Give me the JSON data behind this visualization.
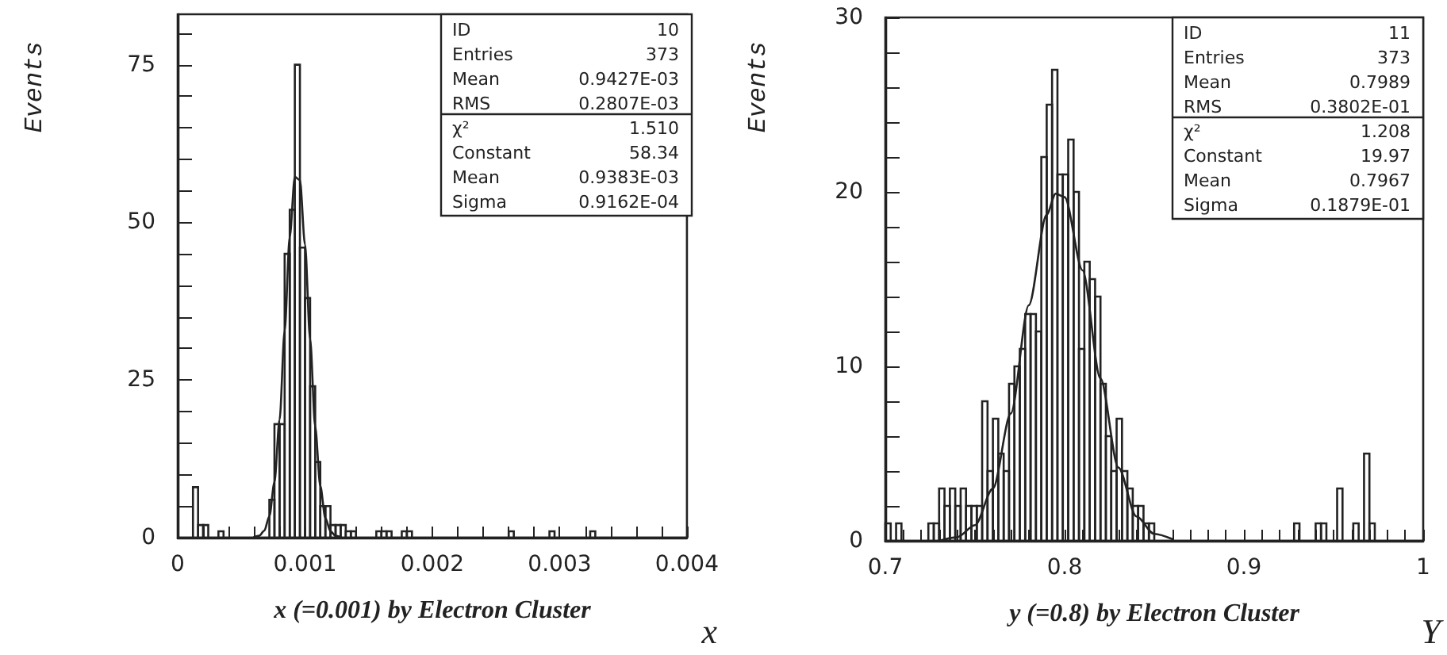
{
  "chart_data": [
    {
      "type": "histogram",
      "xlabel": "x (=0.001) by Electron Cluster",
      "ylabel": "Events",
      "color": "#222222",
      "bins": [
        0,
        4e-05,
        8e-05,
        0.00012,
        0.00016,
        0.0002,
        0.00024,
        0.00028,
        0.00032,
        0.00036,
        0.0004,
        0.00044,
        0.00048,
        0.00052,
        0.00056,
        0.0006,
        0.00064,
        0.00068,
        0.00072,
        0.00076,
        0.0008,
        0.00084,
        0.00088,
        0.00092,
        0.00096,
        0.001,
        0.00104,
        0.00108,
        0.00112,
        0.00116,
        0.0012,
        0.00124,
        0.00128,
        0.00132,
        0.00136,
        0.0014,
        0.00144,
        0.00148,
        0.00152,
        0.00156,
        0.0016,
        0.00164,
        0.00168,
        0.00172,
        0.00176,
        0.0018,
        0.00184,
        0.00188,
        0.00192,
        0.00196,
        0.002,
        0.00204,
        0.00208,
        0.00212,
        0.00216,
        0.0022,
        0.00224,
        0.00228,
        0.00232,
        0.00236,
        0.0024,
        0.00244,
        0.00248,
        0.00252,
        0.00256,
        0.0026,
        0.00264,
        0.00268,
        0.00272,
        0.00276,
        0.0028,
        0.00284,
        0.00288,
        0.00292,
        0.00296,
        0.003,
        0.00304,
        0.00308,
        0.00312,
        0.00316,
        0.0032,
        0.00324,
        0.00328,
        0.00332,
        0.00336,
        0.0034,
        0.00344,
        0.00348,
        0.00352,
        0.00356,
        0.0036,
        0.00364,
        0.00368,
        0.00372,
        0.00376,
        0.0038,
        0.00384,
        0.00388,
        0.00392,
        0.00396,
        0.004
      ],
      "values": [
        0,
        0,
        0,
        8,
        2,
        2,
        0,
        0,
        1,
        0,
        0,
        0,
        0,
        0,
        0,
        0,
        0,
        0,
        6,
        18,
        18,
        45,
        52,
        75,
        46,
        38,
        24,
        12,
        5,
        5,
        2,
        2,
        2,
        1,
        1,
        0,
        0,
        0,
        0,
        1,
        1,
        1,
        0,
        0,
        1,
        1,
        0,
        0,
        0,
        0,
        0,
        0,
        0,
        0,
        0,
        0,
        0,
        0,
        0,
        0,
        0,
        0,
        0,
        0,
        0,
        1,
        0,
        0,
        0,
        0,
        0,
        0,
        0,
        1,
        0,
        0,
        0,
        0,
        0,
        0,
        0,
        1,
        0,
        0,
        0,
        0,
        0,
        0,
        0,
        0,
        0,
        0,
        0,
        0,
        0,
        0,
        0,
        0,
        0,
        0
      ],
      "series": [
        {
          "type": "line",
          "color": "#222222",
          "x": [
            0.0006,
            0.00064,
            0.00068,
            0.00072,
            0.00076,
            0.0008,
            0.00084,
            0.00088,
            0.00092,
            0.00096,
            0.001,
            0.00104,
            0.00108,
            0.00112,
            0.00116,
            0.0012,
            0.00124,
            0.00128
          ],
          "values": [
            0.1,
            0.3,
            1.1,
            3.4,
            8.8,
            18.7,
            32.8,
            47.7,
            57.2,
            56.7,
            46.5,
            31.5,
            17.6,
            8.2,
            3.1,
            1,
            0.3,
            0.1
          ]
        }
      ],
      "xlim": [
        0,
        0.004
      ],
      "xticks": [
        0,
        {
          "value": 0.0002,
          "label": null
        },
        {
          "value": 0.0004,
          "label": null
        },
        {
          "value": 0.0006,
          "label": null
        },
        {
          "value": 0.0008,
          "label": null
        },
        0.001,
        {
          "value": 0.0012,
          "label": null
        },
        {
          "value": 0.0014,
          "label": null
        },
        {
          "value": 0.0016,
          "label": null
        },
        {
          "value": 0.0018,
          "label": null
        },
        0.002,
        {
          "value": 0.0022,
          "label": null
        },
        {
          "value": 0.0024,
          "label": null
        },
        {
          "value": 0.0026,
          "label": null
        },
        {
          "value": 0.0028,
          "label": null
        },
        0.003,
        {
          "value": 0.0032,
          "label": null
        },
        {
          "value": 0.0034,
          "label": null
        },
        {
          "value": 0.0036,
          "label": null
        },
        {
          "value": 0.0038,
          "label": null
        },
        0.004
      ],
      "ylim": [
        0,
        83
      ],
      "yticks": [
        0,
        {
          "value": 5,
          "label": null
        },
        {
          "value": 10,
          "label": null
        },
        {
          "value": 15,
          "label": null
        },
        {
          "value": 20,
          "label": null
        },
        25,
        {
          "value": 30,
          "label": null
        },
        {
          "value": 35,
          "label": null
        },
        {
          "value": 40,
          "label": null
        },
        {
          "value": 45,
          "label": null
        },
        50,
        {
          "value": 55,
          "label": null
        },
        {
          "value": 60,
          "label": null
        },
        {
          "value": 65,
          "label": null
        },
        {
          "value": 70,
          "label": null
        },
        75,
        {
          "value": 80,
          "label": null
        }
      ],
      "annotations": [
        "x",
        "ID",
        "10",
        "Entries",
        "373",
        "Mean",
        "0.9427E-03",
        "RMS",
        "0.2807E-03",
        "χ²",
        "1.510",
        "Constant",
        "58.34",
        "Mean",
        "0.9383E-03",
        "Sigma",
        "0.9162E-04"
      ]
    },
    {
      "type": "histogram",
      "xlabel": "y (=0.8) by Electron Cluster",
      "ylabel": "Events",
      "color": "#222222",
      "bins": [
        0.7,
        0.703,
        0.706,
        0.709,
        0.712,
        0.715,
        0.718,
        0.721,
        0.724,
        0.727,
        0.73,
        0.733,
        0.736,
        0.739,
        0.742,
        0.745,
        0.748,
        0.751,
        0.754,
        0.757,
        0.76,
        0.763,
        0.766,
        0.769,
        0.772,
        0.775,
        0.778,
        0.781,
        0.784,
        0.787,
        0.79,
        0.793,
        0.796,
        0.799,
        0.802,
        0.805,
        0.808,
        0.811,
        0.814,
        0.817,
        0.82,
        0.823,
        0.826,
        0.829,
        0.832,
        0.835,
        0.838,
        0.841,
        0.844,
        0.847,
        0.85,
        0.853,
        0.856,
        0.859,
        0.862,
        0.865,
        0.868,
        0.871,
        0.874,
        0.877,
        0.88,
        0.883,
        0.886,
        0.889,
        0.892,
        0.895,
        0.898,
        0.901,
        0.904,
        0.907,
        0.91,
        0.913,
        0.916,
        0.919,
        0.922,
        0.925,
        0.928,
        0.931,
        0.934,
        0.937,
        0.94,
        0.943,
        0.946,
        0.949,
        0.952,
        0.955,
        0.958,
        0.961,
        0.964,
        0.967,
        0.97,
        0.973,
        0.976,
        0.979,
        0.982,
        0.985,
        0.988,
        0.991,
        0.994,
        0.997,
        1
      ],
      "values": [
        1,
        0,
        1,
        0,
        0,
        0,
        0,
        0,
        1,
        1,
        3,
        2,
        3,
        2,
        3,
        2,
        2,
        2,
        8,
        4,
        7,
        5,
        4,
        9,
        10,
        11,
        13,
        13,
        12,
        22,
        25,
        27,
        21,
        21,
        23,
        20,
        11,
        16,
        15,
        14,
        9,
        6,
        4,
        7,
        4,
        3,
        2,
        2,
        1,
        1,
        0,
        0,
        0,
        0,
        0,
        0,
        0,
        0,
        0,
        0,
        0,
        0,
        0,
        0,
        0,
        0,
        0,
        0,
        0,
        0,
        0,
        0,
        0,
        0,
        0,
        0,
        1,
        0,
        0,
        0,
        1,
        1,
        0,
        0,
        3,
        0,
        0,
        1,
        0,
        5,
        1,
        0,
        0,
        0,
        0,
        0,
        0,
        0,
        0,
        0
      ],
      "series": [
        {
          "type": "line",
          "color": "#222222",
          "x": [
            0.73,
            0.74,
            0.75,
            0.76,
            0.77,
            0.78,
            0.79,
            0.795,
            0.8,
            0.81,
            0.82,
            0.83,
            0.84,
            0.85,
            0.86
          ],
          "values": [
            0,
            0.2,
            0.9,
            3,
            7.3,
            13.5,
            18.7,
            19.9,
            19.7,
            15.5,
            9.3,
            4.2,
            1.4,
            0.4,
            0.1
          ]
        }
      ],
      "xlim": [
        0.7,
        1
      ],
      "xticks": [
        0.7,
        {
          "value": 0.71,
          "label": null
        },
        {
          "value": 0.72,
          "label": null
        },
        {
          "value": 0.73,
          "label": null
        },
        {
          "value": 0.74,
          "label": null
        },
        {
          "value": 0.75,
          "label": null
        },
        {
          "value": 0.76,
          "label": null
        },
        {
          "value": 0.77,
          "label": null
        },
        {
          "value": 0.78,
          "label": null
        },
        {
          "value": 0.79,
          "label": null
        },
        0.8,
        {
          "value": 0.81,
          "label": null
        },
        {
          "value": 0.82,
          "label": null
        },
        {
          "value": 0.83,
          "label": null
        },
        {
          "value": 0.84,
          "label": null
        },
        {
          "value": 0.85,
          "label": null
        },
        {
          "value": 0.86,
          "label": null
        },
        {
          "value": 0.87,
          "label": null
        },
        {
          "value": 0.88,
          "label": null
        },
        {
          "value": 0.89,
          "label": null
        },
        0.9,
        {
          "value": 0.91,
          "label": null
        },
        {
          "value": 0.92,
          "label": null
        },
        {
          "value": 0.93,
          "label": null
        },
        {
          "value": 0.94,
          "label": null
        },
        {
          "value": 0.95,
          "label": null
        },
        {
          "value": 0.96,
          "label": null
        },
        {
          "value": 0.97,
          "label": null
        },
        {
          "value": 0.98,
          "label": null
        },
        {
          "value": 0.99,
          "label": null
        },
        1
      ],
      "ylim": [
        0,
        30
      ],
      "yticks": [
        0,
        {
          "value": 2,
          "label": null
        },
        {
          "value": 4,
          "label": null
        },
        {
          "value": 6,
          "label": null
        },
        {
          "value": 8,
          "label": null
        },
        10,
        {
          "value": 12,
          "label": null
        },
        {
          "value": 14,
          "label": null
        },
        {
          "value": 16,
          "label": null
        },
        {
          "value": 18,
          "label": null
        },
        20,
        {
          "value": 22,
          "label": null
        },
        {
          "value": 24,
          "label": null
        },
        {
          "value": 26,
          "label": null
        },
        {
          "value": 28,
          "label": null
        },
        30
      ],
      "annotations": [
        "Y",
        "ID",
        "11",
        "Entries",
        "373",
        "Mean",
        "0.7989",
        "RMS",
        "0.3802E-01",
        "χ²",
        "1.208",
        "Constant",
        "19.97",
        "Mean",
        "0.7967",
        "Sigma",
        "0.1879E-01"
      ]
    }
  ]
}
